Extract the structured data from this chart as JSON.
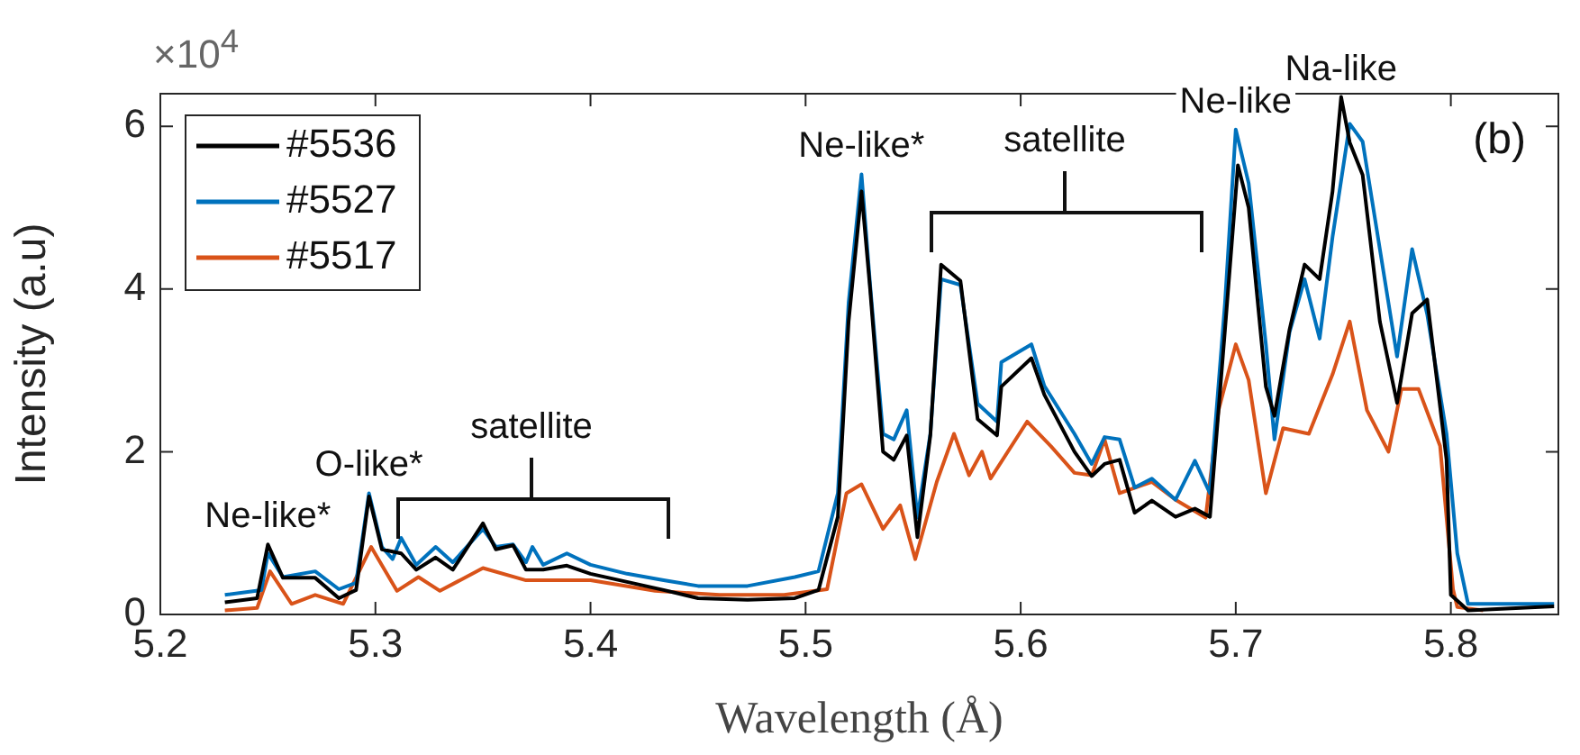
{
  "chart_data": {
    "type": "line",
    "xlabel": "Wavelength (Å)",
    "ylabel": "Intensity (a.u)",
    "xlim": [
      5.2,
      5.85
    ],
    "xticks": [
      5.2,
      5.3,
      5.4,
      5.5,
      5.6,
      5.7,
      5.8
    ],
    "ylim": [
      0,
      6.4
    ],
    "yticks": [
      0,
      2,
      4,
      6
    ],
    "grid": false,
    "legend": "top left",
    "line_style": "solid",
    "marker": "none",
    "annotations": [
      "×10$^{4}$",
      "(b)",
      {
        "text": "Ne-like*",
        "x": 5.25,
        "y": 0.86
      },
      {
        "text": "O-like*",
        "x": 5.297,
        "y": 1.49
      },
      "satellite",
      {
        "text": "Ne-like*",
        "x": 5.526,
        "y": 5.41
      },
      "satellite",
      {
        "text": "Ne-like",
        "x": 5.7,
        "y": 5.96
      },
      {
        "text": "Na-like",
        "x": 5.749,
        "y": 6.36
      }
    ],
    "series": [
      {
        "name": "#5536",
        "color": "#000000",
        "x": [
          5.23,
          5.245,
          5.25,
          5.257,
          5.272,
          5.283,
          5.291,
          5.297,
          5.303,
          5.312,
          5.319,
          5.328,
          5.336,
          5.35,
          5.356,
          5.364,
          5.37,
          5.378,
          5.389,
          5.4,
          5.417,
          5.434,
          5.45,
          5.473,
          5.495,
          5.506,
          5.515,
          5.52,
          5.526,
          5.53,
          5.536,
          5.541,
          5.547,
          5.552,
          5.558,
          5.563,
          5.572,
          5.58,
          5.589,
          5.591,
          5.605,
          5.611,
          5.625,
          5.633,
          5.639,
          5.646,
          5.653,
          5.661,
          5.672,
          5.681,
          5.688,
          5.695,
          5.701,
          5.706,
          5.714,
          5.718,
          5.725,
          5.732,
          5.739,
          5.745,
          5.749,
          5.753,
          5.759,
          5.767,
          5.775,
          5.782,
          5.789,
          5.798,
          5.8,
          5.808,
          5.848
        ],
        "values": [
          0.15,
          0.2,
          0.86,
          0.45,
          0.45,
          0.2,
          0.3,
          1.45,
          0.8,
          0.75,
          0.55,
          0.7,
          0.55,
          1.12,
          0.8,
          0.85,
          0.55,
          0.55,
          0.6,
          0.5,
          0.4,
          0.3,
          0.2,
          0.18,
          0.2,
          0.3,
          1.2,
          3.6,
          5.2,
          4.0,
          2.0,
          1.9,
          2.2,
          0.95,
          2.2,
          4.3,
          4.1,
          2.4,
          2.2,
          2.8,
          3.15,
          2.7,
          2.0,
          1.7,
          1.85,
          1.9,
          1.25,
          1.4,
          1.2,
          1.3,
          1.2,
          3.5,
          5.52,
          5.0,
          2.8,
          2.44,
          3.5,
          4.3,
          4.12,
          5.2,
          6.36,
          5.8,
          5.4,
          3.6,
          2.6,
          3.7,
          3.87,
          1.9,
          0.24,
          0.05,
          0.1
        ]
      },
      {
        "name": "#5527",
        "color": "#0072bd",
        "x": [
          5.23,
          5.247,
          5.25,
          5.257,
          5.272,
          5.283,
          5.291,
          5.297,
          5.303,
          5.308,
          5.312,
          5.319,
          5.328,
          5.336,
          5.35,
          5.356,
          5.364,
          5.37,
          5.373,
          5.378,
          5.389,
          5.4,
          5.417,
          5.434,
          5.45,
          5.473,
          5.495,
          5.506,
          5.515,
          5.52,
          5.526,
          5.53,
          5.536,
          5.541,
          5.547,
          5.552,
          5.558,
          5.563,
          5.572,
          5.58,
          5.589,
          5.591,
          5.605,
          5.611,
          5.625,
          5.633,
          5.639,
          5.646,
          5.653,
          5.661,
          5.672,
          5.681,
          5.688,
          5.695,
          5.7,
          5.706,
          5.714,
          5.718,
          5.725,
          5.732,
          5.739,
          5.745,
          5.753,
          5.759,
          5.767,
          5.775,
          5.782,
          5.789,
          5.798,
          5.803,
          5.808,
          5.848
        ],
        "values": [
          0.24,
          0.3,
          0.75,
          0.46,
          0.53,
          0.31,
          0.39,
          1.49,
          0.83,
          0.68,
          0.94,
          0.61,
          0.83,
          0.64,
          1.05,
          0.83,
          0.86,
          0.64,
          0.83,
          0.61,
          0.75,
          0.61,
          0.5,
          0.42,
          0.35,
          0.35,
          0.46,
          0.53,
          1.49,
          3.83,
          5.41,
          4.05,
          2.22,
          2.15,
          2.51,
          1.19,
          2.22,
          4.12,
          4.05,
          2.59,
          2.37,
          3.1,
          3.32,
          2.81,
          2.22,
          1.85,
          2.18,
          2.15,
          1.56,
          1.67,
          1.41,
          1.89,
          1.49,
          3.83,
          5.96,
          5.3,
          3.32,
          2.15,
          3.47,
          4.12,
          3.39,
          4.64,
          6.03,
          5.81,
          4.49,
          3.17,
          4.49,
          3.69,
          2.22,
          0.75,
          0.13,
          0.13
        ]
      },
      {
        "name": "#5517",
        "color": "#d95319",
        "x": [
          5.23,
          5.245,
          5.251,
          5.261,
          5.272,
          5.285,
          5.298,
          5.31,
          5.32,
          5.33,
          5.35,
          5.37,
          5.4,
          5.43,
          5.46,
          5.49,
          5.51,
          5.519,
          5.526,
          5.536,
          5.544,
          5.551,
          5.561,
          5.569,
          5.576,
          5.582,
          5.586,
          5.603,
          5.614,
          5.625,
          5.633,
          5.639,
          5.646,
          5.661,
          5.672,
          5.686,
          5.692,
          5.7,
          5.706,
          5.714,
          5.722,
          5.734,
          5.745,
          5.753,
          5.761,
          5.771,
          5.777,
          5.785,
          5.795,
          5.801,
          5.803,
          5.815
        ],
        "values": [
          0.05,
          0.08,
          0.53,
          0.13,
          0.24,
          0.13,
          0.83,
          0.29,
          0.46,
          0.29,
          0.57,
          0.42,
          0.42,
          0.29,
          0.24,
          0.24,
          0.31,
          1.49,
          1.6,
          1.05,
          1.34,
          0.68,
          1.63,
          2.22,
          1.71,
          2.0,
          1.67,
          2.37,
          2.07,
          1.74,
          1.71,
          2.15,
          1.49,
          1.63,
          1.41,
          1.19,
          2.51,
          3.32,
          2.88,
          1.49,
          2.29,
          2.22,
          2.95,
          3.6,
          2.51,
          2.0,
          2.77,
          2.77,
          2.07,
          0.31,
          0.09,
          0.05
        ]
      }
    ]
  }
}
